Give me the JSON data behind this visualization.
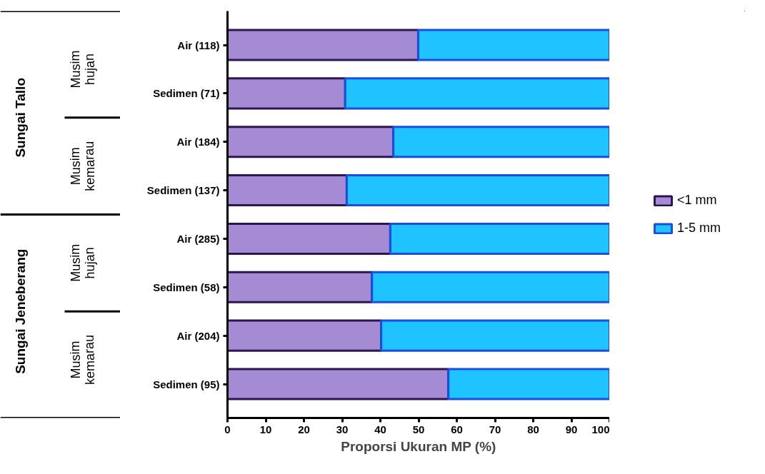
{
  "chart_data": {
    "type": "bar",
    "orientation": "horizontal",
    "stacked": true,
    "categories": [
      "Air (118)",
      "Sedimen (71)",
      "Air (184)",
      "Sedimen (137)",
      "Air (285)",
      "Sedimen (58)",
      "Air (204)",
      "Sedimen (95)"
    ],
    "series": [
      {
        "name": "<1 mm",
        "color": "#a58bd3",
        "values": [
          49.9,
          30.8,
          43.4,
          31.2,
          42.6,
          37.8,
          40.2,
          57.8
        ]
      },
      {
        "name": "1-5 mm",
        "color": "#1ec3ff",
        "values": [
          50.1,
          69.2,
          56.6,
          68.8,
          57.4,
          62.2,
          59.8,
          42.2
        ]
      }
    ],
    "xlabel": "Proporsi Ukuran MP (%)",
    "xlim": [
      0,
      100
    ],
    "xticks": [
      0,
      10,
      20,
      30,
      40,
      50,
      60,
      70,
      80,
      90,
      100
    ],
    "annotations": [
      "Sungai Tallo",
      "Sungai Jeneberang",
      "Musim\nhujan",
      "Musim\nkemarau",
      "Musim\nhujan",
      "Musim\nkemarau"
    ],
    "legend": "right",
    "grid": false
  }
}
